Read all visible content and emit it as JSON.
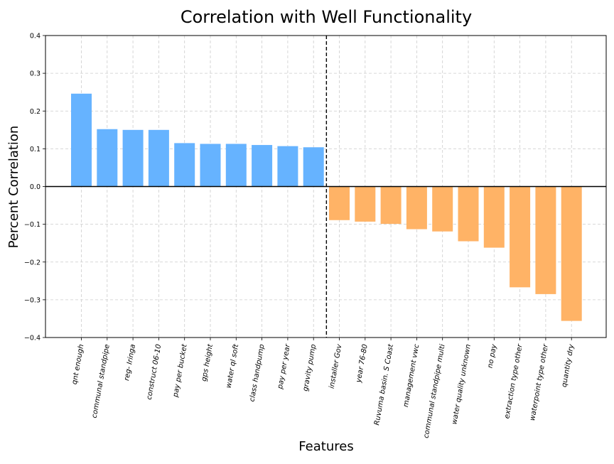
{
  "chart_data": {
    "type": "bar",
    "title": "Correlation with Well Functionality",
    "xlabel": "Features",
    "ylabel": "Percent Correlation",
    "ylim": [
      -0.4,
      0.4
    ],
    "yticks": [
      -0.4,
      -0.3,
      -0.2,
      -0.1,
      0.0,
      0.1,
      0.2,
      0.3,
      0.4
    ],
    "ytick_labels": [
      "−0.4",
      "−0.3",
      "−0.2",
      "−0.1",
      "0.0",
      "0.1",
      "0.2",
      "0.3",
      "0.4"
    ],
    "grid": true,
    "categories": [
      "qnt enough",
      "communal standpipe",
      "reg- Iringa",
      "construct 06-10",
      "pay per bucket",
      "gps height",
      "water ql soft",
      "class handpump",
      "pay per year",
      "gravity pump",
      "installer Gov",
      "year 76-80",
      "Ruvuma basin. S Coast",
      "management vwc",
      "communal standpipe multi",
      "water quality unknown",
      "no pay",
      "extraction type other",
      "waterpoint type other",
      "quantity dry"
    ],
    "values": [
      0.246,
      0.152,
      0.15,
      0.15,
      0.115,
      0.113,
      0.113,
      0.11,
      0.107,
      0.104,
      -0.089,
      -0.093,
      -0.099,
      -0.113,
      -0.119,
      -0.145,
      -0.162,
      -0.267,
      -0.285,
      -0.356
    ],
    "colors": {
      "positive": "#66b3ff",
      "negative": "#ffb366"
    },
    "divider_after_index": 9
  }
}
